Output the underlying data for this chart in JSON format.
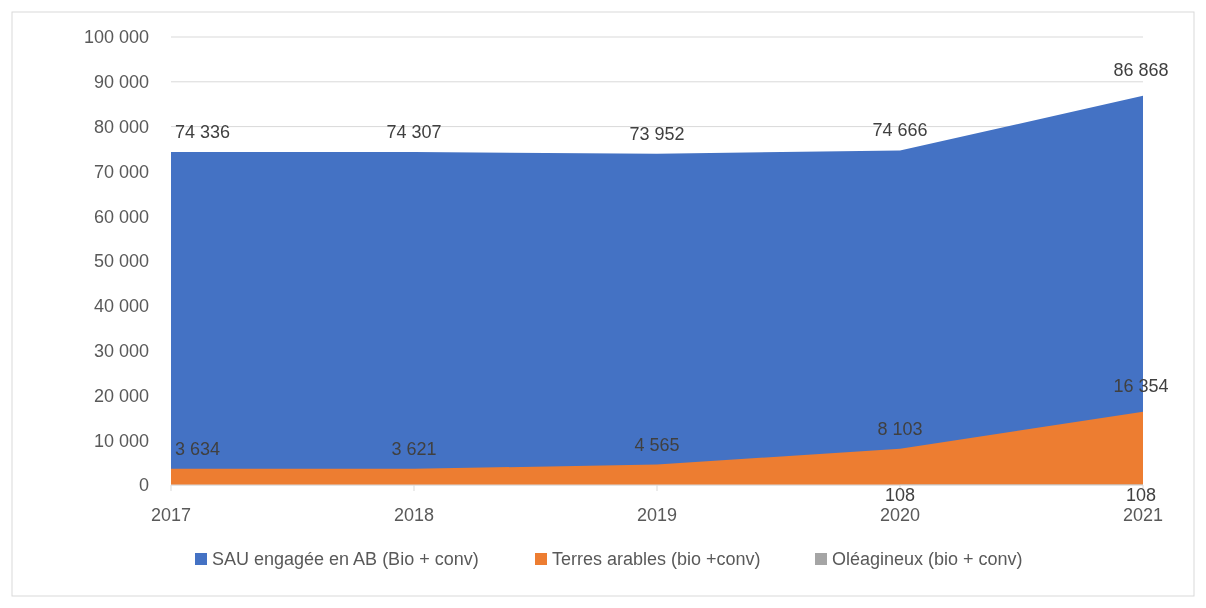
{
  "chart_data": {
    "type": "area",
    "categories": [
      "2017",
      "2018",
      "2019",
      "2020",
      "2021"
    ],
    "series": [
      {
        "name": "SAU engagée en AB (Bio + conv)",
        "color": "#4472c4",
        "values": [
          74336,
          74307,
          73952,
          74666,
          86868
        ],
        "value_labels": [
          "74 336",
          "74 307",
          "73 952",
          "74 666",
          "86 868"
        ]
      },
      {
        "name": "Terres arables (bio +conv)",
        "color": "#ed7d31",
        "values": [
          3634,
          3621,
          4565,
          8103,
          16354
        ],
        "value_labels": [
          "3 634",
          "3 621",
          "4 565",
          "8 103",
          "16 354"
        ]
      },
      {
        "name": "Oléagineux (bio + conv)",
        "color": "#a5a5a5",
        "values": [
          null,
          null,
          null,
          108,
          108
        ],
        "value_labels": [
          null,
          null,
          null,
          "108",
          "108"
        ]
      }
    ],
    "ylim": [
      0,
      100000
    ],
    "yticks": [
      {
        "value": 0,
        "label": "0"
      },
      {
        "value": 10000,
        "label": "10 000"
      },
      {
        "value": 20000,
        "label": "20 000"
      },
      {
        "value": 30000,
        "label": "30 000"
      },
      {
        "value": 40000,
        "label": "40 000"
      },
      {
        "value": 50000,
        "label": "50 000"
      },
      {
        "value": 60000,
        "label": "60 000"
      },
      {
        "value": 70000,
        "label": "70 000"
      },
      {
        "value": 80000,
        "label": "80 000"
      },
      {
        "value": 90000,
        "label": "90 000"
      },
      {
        "value": 100000,
        "label": "100 000"
      }
    ],
    "grid": "y",
    "legend": "bottom"
  }
}
